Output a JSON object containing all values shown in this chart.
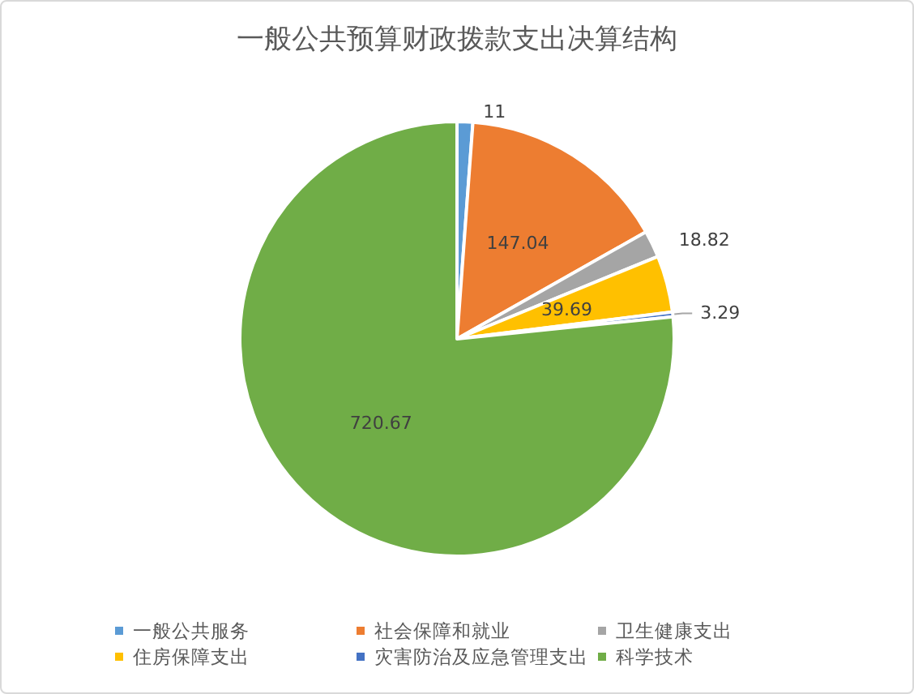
{
  "chart_data": {
    "type": "pie",
    "title": "一般公共预算财政拨款支出决算结构",
    "categories": [
      "一般公共服务",
      "社会保障和就业",
      "卫生健康支出",
      "住房保障支出",
      "灾害防治及应急管理支出",
      "科学技术"
    ],
    "values": [
      11,
      147.04,
      18.82,
      39.69,
      3.29,
      720.67
    ],
    "colors": [
      "#5b9bd5",
      "#ed7d31",
      "#a5a5a5",
      "#ffc000",
      "#4472c4",
      "#70ad47"
    ],
    "data_labels": true,
    "legend": "bottom"
  }
}
